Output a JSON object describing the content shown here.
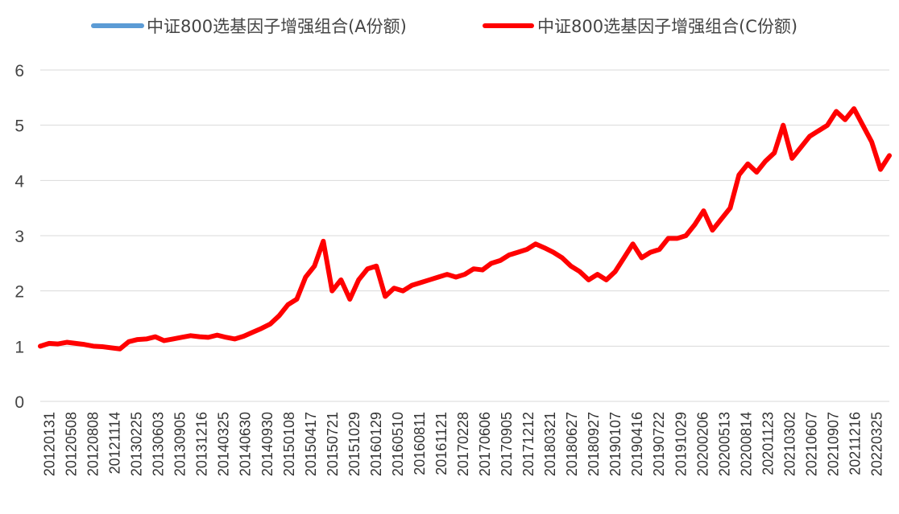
{
  "chart_data": {
    "type": "line",
    "title": "",
    "xlabel": "",
    "ylabel": "",
    "ylim": [
      0,
      6
    ],
    "yticks": [
      0,
      1,
      2,
      3,
      4,
      5,
      6
    ],
    "grid": "horizontal",
    "legend_position": "top",
    "x_tick_labels": [
      "20120131",
      "20120508",
      "20120808",
      "20121114",
      "20130225",
      "20130603",
      "20130905",
      "20131216",
      "20140325",
      "20140630",
      "20140930",
      "20150108",
      "20150417",
      "20150721",
      "20151029",
      "20160129",
      "20160510",
      "20160811",
      "20161121",
      "20170228",
      "20170606",
      "20170905",
      "20171212",
      "20180321",
      "20180627",
      "20180927",
      "20190107",
      "20190416",
      "20190722",
      "20191029",
      "20200206",
      "20200513",
      "20200814",
      "20201123",
      "20210302",
      "20210607",
      "20210907",
      "20211216",
      "20220325"
    ],
    "series": [
      {
        "name": "中证800选基因子增强组合(A份额)",
        "color": "#5b9bd5",
        "values": [
          1.0,
          1.05,
          1.04,
          1.07,
          1.05,
          1.03,
          1.0,
          0.99,
          0.97,
          0.95,
          1.08,
          1.12,
          1.13,
          1.17,
          1.1,
          1.13,
          1.16,
          1.19,
          1.17,
          1.16,
          1.2,
          1.16,
          1.13,
          1.18,
          1.25,
          1.32,
          1.4,
          1.55,
          1.75,
          1.85,
          2.25,
          2.45,
          2.9,
          2.0,
          2.2,
          1.85,
          2.2,
          2.4,
          2.45,
          1.9,
          2.05,
          2.0,
          2.1,
          2.15,
          2.2,
          2.25,
          2.3,
          2.25,
          2.3,
          2.4,
          2.38,
          2.5,
          2.55,
          2.65,
          2.7,
          2.75,
          2.85,
          2.78,
          2.7,
          2.6,
          2.45,
          2.35,
          2.2,
          2.3,
          2.2,
          2.35,
          2.6,
          2.85,
          2.6,
          2.7,
          2.75,
          2.95,
          2.95,
          3.0,
          3.2,
          3.45,
          3.1,
          3.3,
          3.5,
          4.1,
          4.3,
          4.15,
          4.35,
          4.5,
          5.0,
          4.4,
          4.6,
          4.8,
          4.9,
          5.0,
          5.25,
          5.1,
          5.3,
          5.0,
          4.7,
          4.2,
          4.45
        ]
      },
      {
        "name": "中证800选基因子增强组合(C份额)",
        "color": "#ff0000",
        "values": [
          1.0,
          1.05,
          1.04,
          1.07,
          1.05,
          1.03,
          1.0,
          0.99,
          0.97,
          0.95,
          1.08,
          1.12,
          1.13,
          1.17,
          1.1,
          1.13,
          1.16,
          1.19,
          1.17,
          1.16,
          1.2,
          1.16,
          1.13,
          1.18,
          1.25,
          1.32,
          1.4,
          1.55,
          1.75,
          1.85,
          2.25,
          2.45,
          2.9,
          2.0,
          2.2,
          1.85,
          2.2,
          2.4,
          2.45,
          1.9,
          2.05,
          2.0,
          2.1,
          2.15,
          2.2,
          2.25,
          2.3,
          2.25,
          2.3,
          2.4,
          2.38,
          2.5,
          2.55,
          2.65,
          2.7,
          2.75,
          2.85,
          2.78,
          2.7,
          2.6,
          2.45,
          2.35,
          2.2,
          2.3,
          2.2,
          2.35,
          2.6,
          2.85,
          2.6,
          2.7,
          2.75,
          2.95,
          2.95,
          3.0,
          3.2,
          3.45,
          3.1,
          3.3,
          3.5,
          4.1,
          4.3,
          4.15,
          4.35,
          4.5,
          5.0,
          4.4,
          4.6,
          4.8,
          4.9,
          5.0,
          5.25,
          5.1,
          5.3,
          5.0,
          4.7,
          4.2,
          4.45
        ]
      }
    ]
  }
}
